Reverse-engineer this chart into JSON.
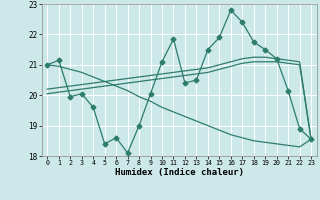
{
  "x": [
    0,
    1,
    2,
    3,
    4,
    5,
    6,
    7,
    8,
    9,
    10,
    11,
    12,
    13,
    14,
    15,
    16,
    17,
    18,
    19,
    20,
    21,
    22,
    23
  ],
  "line_main": [
    21.0,
    21.15,
    19.95,
    20.05,
    19.6,
    18.4,
    18.6,
    18.1,
    19.0,
    20.05,
    21.1,
    21.85,
    20.4,
    20.5,
    21.5,
    21.9,
    22.8,
    22.4,
    21.75,
    21.5,
    21.2,
    20.15,
    18.9,
    18.55
  ],
  "line_down": [
    21.0,
    20.95,
    20.85,
    20.75,
    20.6,
    20.45,
    20.3,
    20.15,
    19.95,
    19.8,
    19.6,
    19.45,
    19.3,
    19.15,
    19.0,
    18.85,
    18.7,
    18.6,
    18.5,
    18.45,
    18.4,
    18.35,
    18.3,
    18.55
  ],
  "line_up1": [
    20.05,
    20.1,
    20.15,
    20.2,
    20.25,
    20.3,
    20.35,
    20.4,
    20.45,
    20.5,
    20.55,
    20.6,
    20.65,
    20.7,
    20.75,
    20.85,
    20.95,
    21.05,
    21.1,
    21.1,
    21.1,
    21.05,
    21.0,
    18.55
  ],
  "line_up2": [
    20.2,
    20.25,
    20.3,
    20.35,
    20.4,
    20.45,
    20.5,
    20.55,
    20.6,
    20.65,
    20.7,
    20.75,
    20.8,
    20.85,
    20.9,
    21.0,
    21.1,
    21.2,
    21.25,
    21.25,
    21.2,
    21.15,
    21.1,
    18.55
  ],
  "xlabel": "Humidex (Indice chaleur)",
  "ylim": [
    18.0,
    23.0
  ],
  "xlim": [
    -0.5,
    23.5
  ],
  "yticks": [
    18,
    19,
    20,
    21,
    22,
    23
  ],
  "xticks": [
    0,
    1,
    2,
    3,
    4,
    5,
    6,
    7,
    8,
    9,
    10,
    11,
    12,
    13,
    14,
    15,
    16,
    17,
    18,
    19,
    20,
    21,
    22,
    23
  ],
  "line_color": "#2d7d6b",
  "bg_color": "#cde8e8",
  "grid_color": "#b8d8d8",
  "marker": "D",
  "marker_size": 2.5
}
